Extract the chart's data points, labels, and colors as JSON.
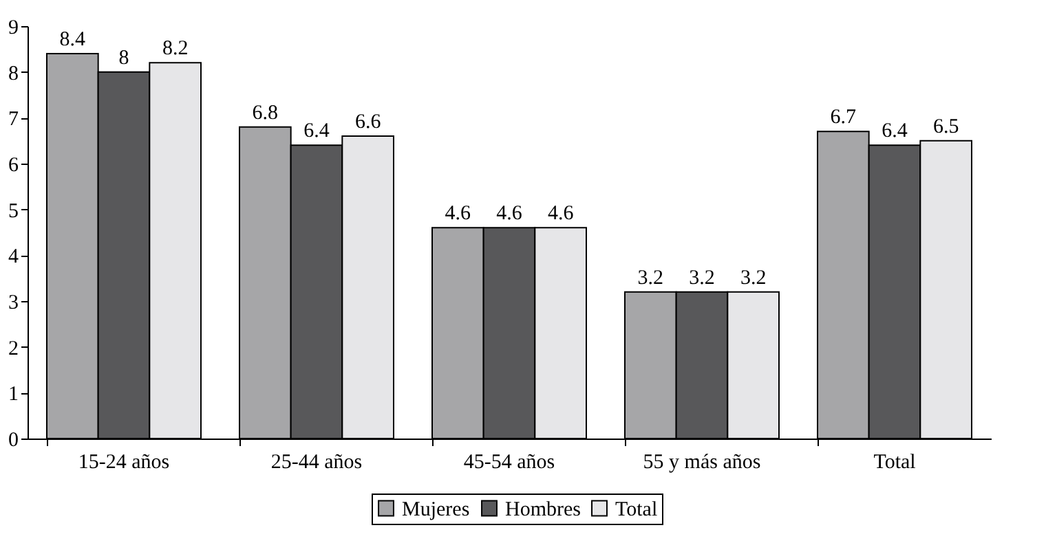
{
  "chart_data": {
    "type": "bar",
    "categories": [
      "15-24 años",
      "25-44 años",
      "45-54 años",
      "55 y más años",
      "Total"
    ],
    "series": [
      {
        "name": "Mujeres",
        "color": "#a6a6a8",
        "values": [
          8.4,
          6.8,
          4.6,
          3.2,
          6.7
        ]
      },
      {
        "name": "Hombres",
        "color": "#58585a",
        "values": [
          8,
          6.4,
          4.6,
          3.2,
          6.4
        ]
      },
      {
        "name": "Total",
        "color": "#e6e6e8",
        "values": [
          8.2,
          6.6,
          4.6,
          3.2,
          6.5
        ]
      }
    ],
    "ylim": [
      0,
      9
    ],
    "yticks": [
      0,
      1,
      2,
      3,
      4,
      5,
      6,
      7,
      8,
      9
    ],
    "data_labels": true,
    "legend": "bottom",
    "grid": false
  }
}
